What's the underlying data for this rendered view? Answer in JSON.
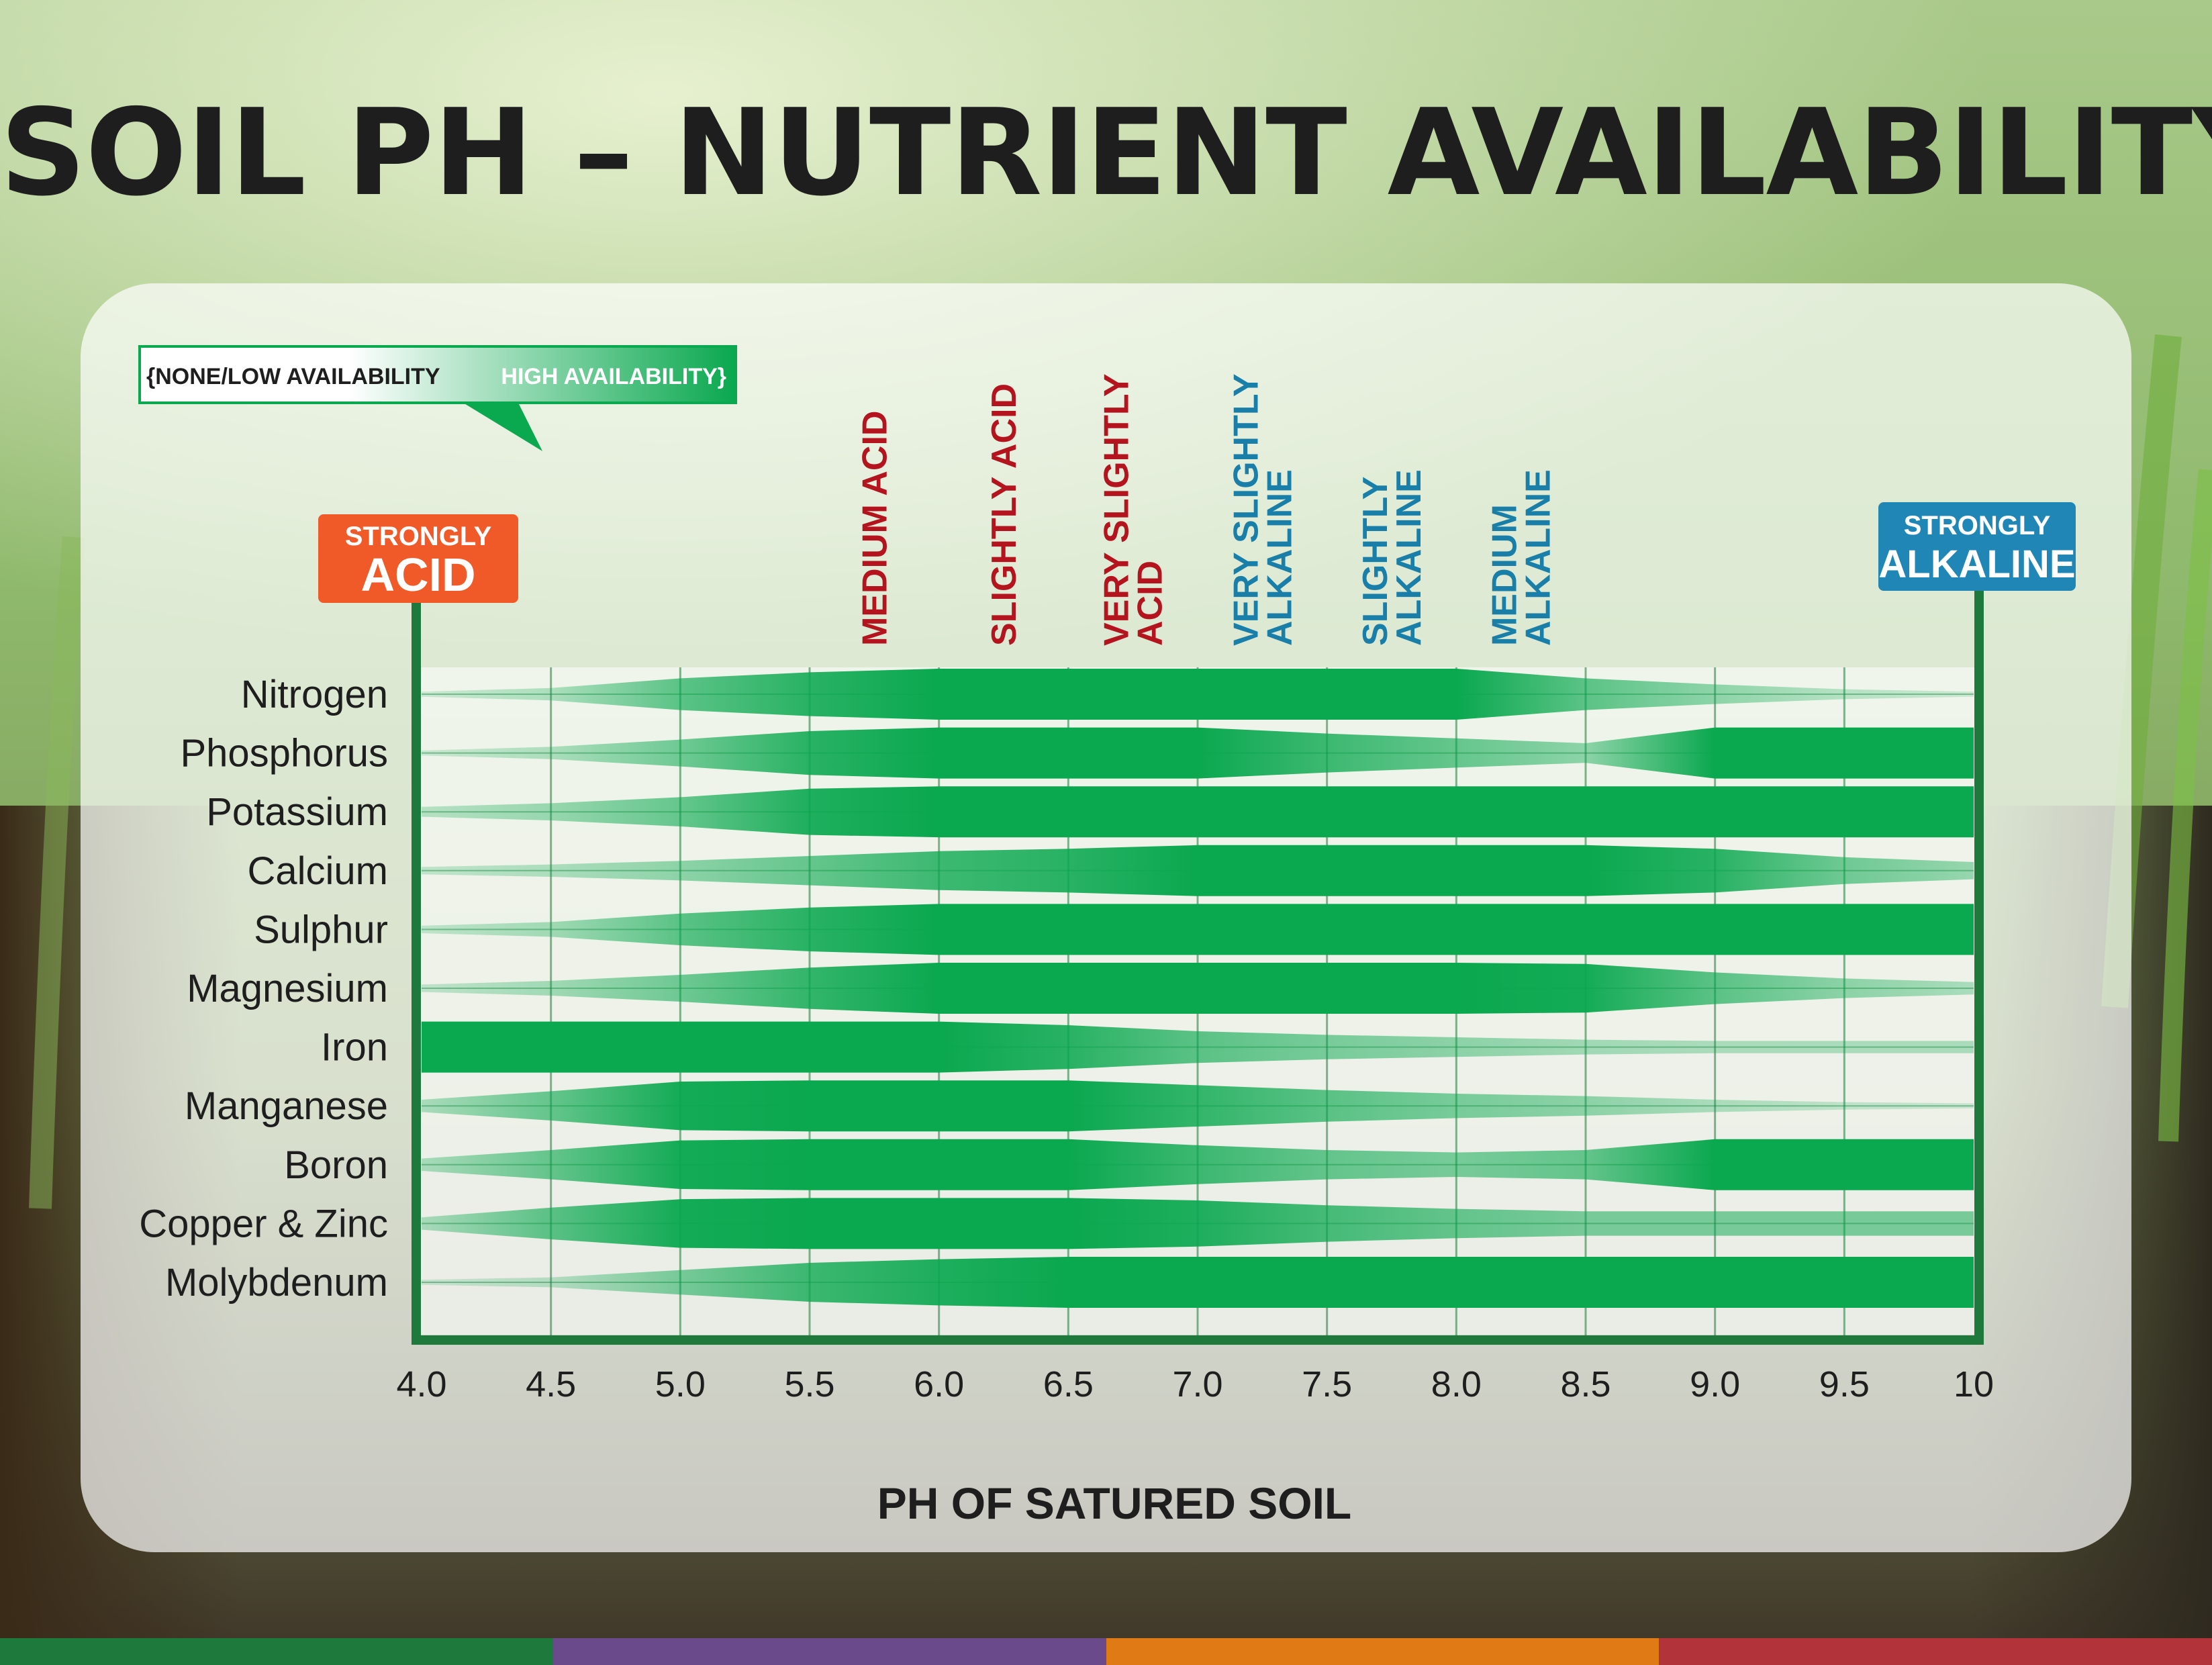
{
  "title": "SOIL PH – NUTRIENT AVAILABILITY",
  "legend": {
    "low_label": "{NONE/LOW AVAILABILITY",
    "high_label": "HIGH AVAILABILITY}",
    "low_color": "#ffffff",
    "high_color": "#0aa84f"
  },
  "badges": {
    "acid_line1": "STRONGLY",
    "acid_line2": "ACID",
    "acid_color": "#f05a28",
    "alkaline_line1": "STRONGLY",
    "alkaline_line2": "ALKALINE",
    "alkaline_color": "#1f86b5"
  },
  "zones": [
    {
      "label": [
        "MEDIUM ACID"
      ],
      "ph": 5.75,
      "color": "#b3141e"
    },
    {
      "label": [
        "SLIGHTLY ACID"
      ],
      "ph": 6.25,
      "color": "#b3141e"
    },
    {
      "label": [
        "VERY SLIGHTLY",
        "ACID"
      ],
      "ph": 6.75,
      "color": "#b3141e"
    },
    {
      "label": [
        "VERY SLIGHTLY",
        "ALKALINE"
      ],
      "ph": 7.25,
      "color": "#1a7fa8"
    },
    {
      "label": [
        "SLIGHTLY",
        "ALKALINE"
      ],
      "ph": 7.75,
      "color": "#1a7fa8"
    },
    {
      "label": [
        "MEDIUM",
        "ALKALINE"
      ],
      "ph": 8.25,
      "color": "#1a7fa8"
    }
  ],
  "chart_data": {
    "type": "area",
    "x": [
      4.0,
      4.5,
      5.0,
      5.5,
      6.0,
      6.5,
      7.0,
      7.5,
      8.0,
      8.5,
      9.0,
      9.5,
      10.0
    ],
    "xticks": [
      "4.0",
      "4.5",
      "5.0",
      "5.5",
      "6.0",
      "6.5",
      "7.0",
      "7.5",
      "8.0",
      "8.5",
      "9.0",
      "9.5",
      "10"
    ],
    "xlabel": "PH OF SATURED SOIL",
    "xlim": [
      4.0,
      10.0
    ],
    "bar_color": "#0aa84f",
    "series": [
      {
        "name": "Nitrogen",
        "values": [
          0.05,
          0.2,
          0.6,
          0.85,
          1.0,
          1.0,
          1.0,
          1.0,
          1.0,
          0.6,
          0.35,
          0.15,
          0.05
        ]
      },
      {
        "name": "Phosphorus",
        "values": [
          0.05,
          0.2,
          0.5,
          0.85,
          1.0,
          1.0,
          1.0,
          0.75,
          0.55,
          0.35,
          1.0,
          1.0,
          1.0
        ]
      },
      {
        "name": "Potassium",
        "values": [
          0.15,
          0.3,
          0.55,
          0.9,
          1.0,
          1.0,
          1.0,
          1.0,
          1.0,
          1.0,
          1.0,
          1.0,
          1.0
        ]
      },
      {
        "name": "Calcium",
        "values": [
          0.1,
          0.2,
          0.35,
          0.55,
          0.75,
          0.85,
          1.0,
          1.0,
          1.0,
          1.0,
          0.85,
          0.5,
          0.3
        ]
      },
      {
        "name": "Sulphur",
        "values": [
          0.1,
          0.25,
          0.6,
          0.85,
          1.0,
          1.0,
          1.0,
          1.0,
          1.0,
          1.0,
          1.0,
          1.0,
          1.0
        ]
      },
      {
        "name": "Magnesium",
        "values": [
          0.1,
          0.25,
          0.5,
          0.8,
          1.0,
          1.0,
          1.0,
          1.0,
          1.0,
          0.95,
          0.6,
          0.35,
          0.2
        ]
      },
      {
        "name": "Iron",
        "values": [
          1.0,
          1.0,
          1.0,
          1.0,
          1.0,
          0.85,
          0.6,
          0.45,
          0.35,
          0.25,
          0.2,
          0.2,
          0.2
        ]
      },
      {
        "name": "Manganese",
        "values": [
          0.2,
          0.55,
          0.95,
          1.0,
          1.0,
          1.0,
          0.8,
          0.6,
          0.45,
          0.35,
          0.2,
          0.1,
          0.05
        ]
      },
      {
        "name": "Boron",
        "values": [
          0.2,
          0.55,
          0.95,
          1.0,
          1.0,
          1.0,
          0.75,
          0.55,
          0.45,
          0.55,
          1.0,
          1.0,
          1.0
        ]
      },
      {
        "name": "Copper & Zinc",
        "values": [
          0.2,
          0.6,
          0.95,
          1.0,
          1.0,
          1.0,
          0.9,
          0.7,
          0.55,
          0.45,
          0.45,
          0.45,
          0.45
        ]
      },
      {
        "name": "Molybdenum",
        "values": [
          0.05,
          0.15,
          0.45,
          0.75,
          0.9,
          1.0,
          1.0,
          1.0,
          1.0,
          1.0,
          1.0,
          1.0,
          1.0
        ]
      }
    ]
  },
  "footer_colors": [
    "#1d7a3c",
    "#6b4a8c",
    "#e07a14",
    "#b2333a"
  ]
}
